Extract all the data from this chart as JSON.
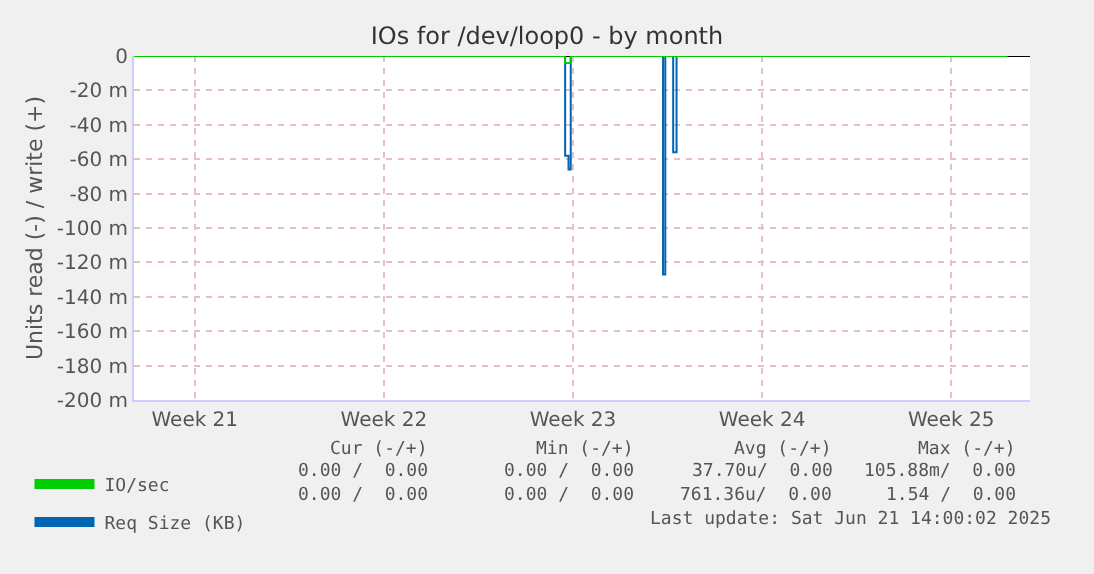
{
  "chart_data": {
    "type": "step",
    "title": "IOs for /dev/loop0 - by month",
    "ylabel": "Units read (-) / write (+)",
    "xlim": [
      "2025-05-20T06:00",
      "2025-06-22T10:00"
    ],
    "xticks": [
      {
        "value": "2025-05-22T12:00",
        "label": "Week 21"
      },
      {
        "value": "2025-05-29T12:00",
        "label": "Week 22"
      },
      {
        "value": "2025-06-05T12:00",
        "label": "Week 23"
      },
      {
        "value": "2025-06-12T12:00",
        "label": "Week 24"
      },
      {
        "value": "2025-06-19T12:00",
        "label": "Week 25"
      }
    ],
    "ylim": [
      -200,
      0
    ],
    "yticks": [
      0,
      {
        "value": -20,
        "label": "-20 m"
      },
      {
        "value": -40,
        "label": "-40 m"
      },
      {
        "value": -60,
        "label": "-60 m"
      },
      {
        "value": -80,
        "label": "-80 m"
      },
      {
        "value": -100,
        "label": "-100 m"
      },
      {
        "value": -120,
        "label": "-120 m"
      },
      {
        "value": -140,
        "label": "-140 m"
      },
      {
        "value": -160,
        "label": "-160 m"
      },
      {
        "value": -180,
        "label": "-180 m"
      },
      {
        "value": -200,
        "label": "-200 m"
      }
    ],
    "series": [
      {
        "name": "IO/sec",
        "color": "#00cc00",
        "x": [
          "2025-05-20T06:00",
          "2025-06-05T05:00",
          "2025-06-05T10:00",
          "2025-06-21T14:00"
        ],
        "values": [
          0,
          -4,
          0,
          0
        ]
      },
      {
        "name": "Req Size (KB)",
        "color": "#0066b3",
        "x": [
          "2025-05-20T06:00",
          "2025-06-05T05:00",
          "2025-06-05T08:00",
          "2025-06-05T10:00",
          "2025-06-08T20:00",
          "2025-06-08T22:00",
          "2025-06-09T05:00",
          "2025-06-09T08:00",
          "2025-06-21T14:00"
        ],
        "values": [
          0,
          -58,
          -66,
          0,
          -127,
          0,
          -56,
          0,
          0
        ]
      }
    ],
    "ref_lines": [
      {
        "axis": "y",
        "value": 0,
        "color": "#000000"
      }
    ],
    "grid": true,
    "legend": "bottom left",
    "annotations": [
      "Cur (-/+)",
      "Min (-/+)",
      "Avg (-/+)",
      "Max (-/+)",
      "0.00 /  0.00",
      "0.00 /  0.00",
      "37.70u/  0.00",
      "105.88m/  0.00",
      "0.00 /  0.00",
      "0.00 /  0.00",
      "761.36u/  0.00",
      "1.54 /  0.00",
      "Last update: Sat Jun 21 14:00:02 2025"
    ]
  }
}
